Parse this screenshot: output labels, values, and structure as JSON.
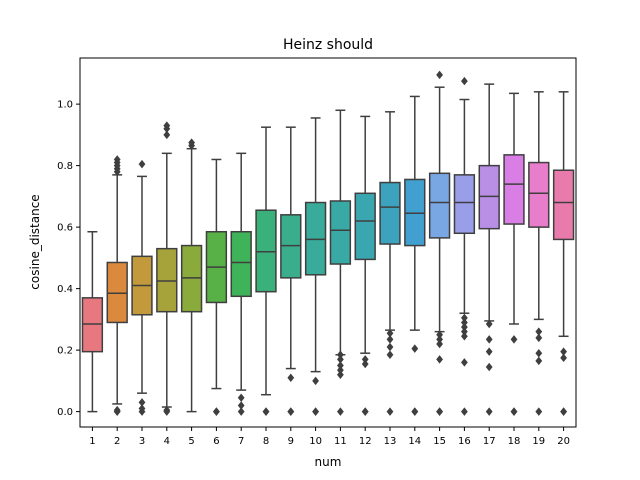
{
  "chart_data": {
    "type": "box",
    "title": "Heinz should",
    "xlabel": "num",
    "ylabel": "cosine_distance",
    "ylim": [
      -0.05,
      1.15
    ],
    "yticks": [
      "0.0",
      "0.2",
      "0.4",
      "0.6",
      "0.8",
      "1.0"
    ],
    "grid": false,
    "categories": [
      "1",
      "2",
      "3",
      "4",
      "5",
      "6",
      "7",
      "8",
      "9",
      "10",
      "11",
      "12",
      "13",
      "14",
      "15",
      "16",
      "17",
      "18",
      "19",
      "20"
    ],
    "boxes": [
      {
        "num": "1",
        "color": "#e8787f",
        "whislo": 0.0,
        "q1": 0.195,
        "med": 0.285,
        "q3": 0.37,
        "whishi": 0.585,
        "fliers": []
      },
      {
        "num": "2",
        "color": "#db8a3d",
        "whislo": 0.025,
        "q1": 0.29,
        "med": 0.385,
        "q3": 0.485,
        "whishi": 0.77,
        "fliers": [
          0.0,
          0.0,
          0.005,
          0.78,
          0.79,
          0.8,
          0.81,
          0.82
        ]
      },
      {
        "num": "3",
        "color": "#c29a3c",
        "whislo": 0.06,
        "q1": 0.315,
        "med": 0.41,
        "q3": 0.505,
        "whishi": 0.765,
        "fliers": [
          0.0,
          0.01,
          0.03,
          0.805
        ]
      },
      {
        "num": "4",
        "color": "#a7a33b",
        "whislo": 0.015,
        "q1": 0.325,
        "med": 0.425,
        "q3": 0.53,
        "whishi": 0.84,
        "fliers": [
          0.0,
          0.005,
          0.9,
          0.92,
          0.93
        ]
      },
      {
        "num": "5",
        "color": "#8aab3c",
        "whislo": 0.0,
        "q1": 0.325,
        "med": 0.435,
        "q3": 0.54,
        "whishi": 0.855,
        "fliers": [
          0.865,
          0.875
        ]
      },
      {
        "num": "6",
        "color": "#57b146",
        "whislo": 0.075,
        "q1": 0.355,
        "med": 0.47,
        "q3": 0.585,
        "whishi": 0.82,
        "fliers": [
          0.0,
          0.0
        ]
      },
      {
        "num": "7",
        "color": "#3fb359",
        "whislo": 0.07,
        "q1": 0.375,
        "med": 0.485,
        "q3": 0.585,
        "whishi": 0.84,
        "fliers": [
          0.0,
          0.02,
          0.045
        ]
      },
      {
        "num": "8",
        "color": "#3ab17a",
        "whislo": 0.055,
        "q1": 0.39,
        "med": 0.52,
        "q3": 0.655,
        "whishi": 0.925,
        "fliers": [
          0.0,
          0.0
        ]
      },
      {
        "num": "9",
        "color": "#3aae8c",
        "whislo": 0.14,
        "q1": 0.435,
        "med": 0.54,
        "q3": 0.64,
        "whishi": 0.925,
        "fliers": [
          0.0,
          0.0,
          0.11
        ]
      },
      {
        "num": "10",
        "color": "#38ab9a",
        "whislo": 0.13,
        "q1": 0.445,
        "med": 0.56,
        "q3": 0.68,
        "whishi": 0.955,
        "fliers": [
          0.0,
          0.0,
          0.1
        ]
      },
      {
        "num": "11",
        "color": "#39a9a5",
        "whislo": 0.185,
        "q1": 0.48,
        "med": 0.59,
        "q3": 0.685,
        "whishi": 0.98,
        "fliers": [
          0.0,
          0.12,
          0.135,
          0.15,
          0.17,
          0.185
        ]
      },
      {
        "num": "12",
        "color": "#3aa6b0",
        "whislo": 0.19,
        "q1": 0.495,
        "med": 0.62,
        "q3": 0.71,
        "whishi": 0.96,
        "fliers": [
          0.0,
          0.0,
          0.155,
          0.17
        ]
      },
      {
        "num": "13",
        "color": "#3ca2bd",
        "whislo": 0.265,
        "q1": 0.545,
        "med": 0.665,
        "q3": 0.745,
        "whishi": 0.975,
        "fliers": [
          0.0,
          0.185,
          0.21,
          0.235,
          0.255
        ]
      },
      {
        "num": "14",
        "color": "#41a0cf",
        "whislo": 0.265,
        "q1": 0.54,
        "med": 0.645,
        "q3": 0.755,
        "whishi": 1.025,
        "fliers": [
          0.0,
          0.0,
          0.205
        ]
      },
      {
        "num": "15",
        "color": "#79a7e3",
        "whislo": 0.26,
        "q1": 0.565,
        "med": 0.68,
        "q3": 0.775,
        "whishi": 1.055,
        "fliers": [
          0.0,
          0.0,
          0.17,
          0.22,
          0.235,
          0.25,
          1.095
        ]
      },
      {
        "num": "16",
        "color": "#9a9ee9",
        "whislo": 0.32,
        "q1": 0.58,
        "med": 0.68,
        "q3": 0.77,
        "whishi": 1.015,
        "fliers": [
          0.0,
          0.16,
          0.245,
          0.26,
          0.275,
          0.29,
          0.305,
          1.075
        ]
      },
      {
        "num": "17",
        "color": "#b98fe6",
        "whislo": 0.295,
        "q1": 0.595,
        "med": 0.7,
        "q3": 0.8,
        "whishi": 1.065,
        "fliers": [
          0.0,
          0.145,
          0.195,
          0.235,
          0.285
        ]
      },
      {
        "num": "18",
        "color": "#d97ee5",
        "whislo": 0.285,
        "q1": 0.61,
        "med": 0.74,
        "q3": 0.835,
        "whishi": 1.035,
        "fliers": [
          0.0,
          0.0,
          0.235
        ]
      },
      {
        "num": "19",
        "color": "#e77dcb",
        "whislo": 0.3,
        "q1": 0.6,
        "med": 0.71,
        "q3": 0.81,
        "whishi": 1.04,
        "fliers": [
          0.0,
          0.165,
          0.19,
          0.24,
          0.26
        ]
      },
      {
        "num": "20",
        "color": "#e97bac",
        "whislo": 0.245,
        "q1": 0.56,
        "med": 0.68,
        "q3": 0.785,
        "whishi": 1.04,
        "fliers": [
          0.0,
          0.0,
          0.175,
          0.195
        ]
      }
    ]
  }
}
